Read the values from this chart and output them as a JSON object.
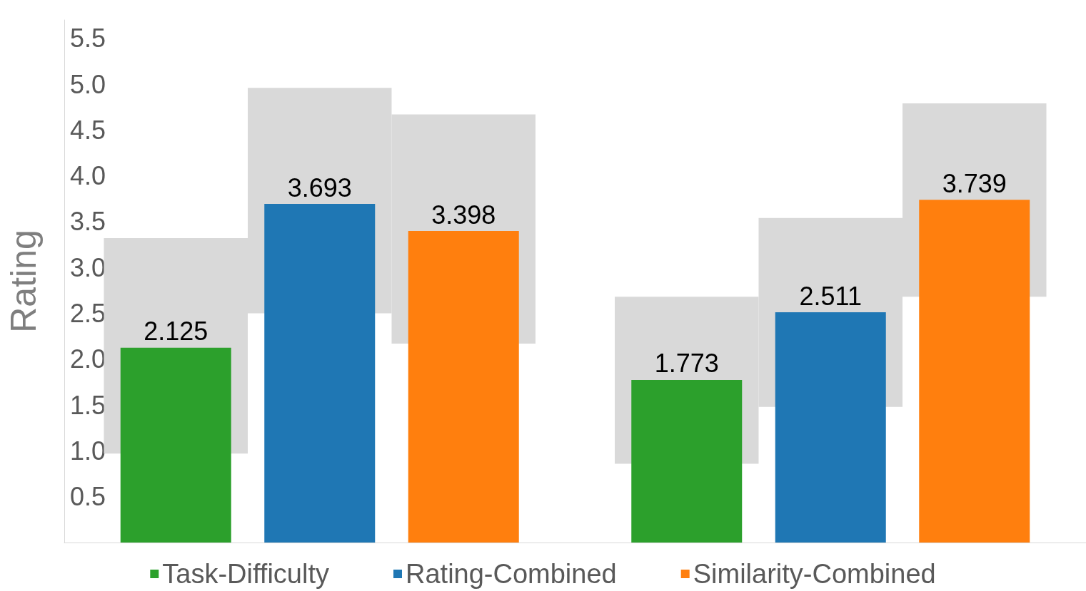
{
  "chart_data": {
    "type": "bar",
    "ylabel": "Rating",
    "categories": [
      null,
      null
    ],
    "ylim": [
      0,
      5.7
    ],
    "yticks": [
      0.5,
      {
        "value": 1,
        "label": "1.0"
      },
      1.5,
      {
        "value": 2,
        "label": "2.0"
      },
      2.5,
      {
        "value": 3,
        "label": "3.0"
      },
      3.5,
      {
        "value": 4,
        "label": "4.0"
      },
      4.5,
      {
        "value": 5,
        "label": "5.0"
      },
      5.5
    ],
    "legend": "bottom",
    "grid": false,
    "series": [
      {
        "name": "Task-Difficulty",
        "color": "#2ca02c",
        "values": [
          2.125,
          1.773
        ],
        "value_labels": [
          "2.125",
          "1.773"
        ]
      },
      {
        "name": "Rating-Combined",
        "color": "#1f77b4",
        "values": [
          3.693,
          2.511
        ],
        "value_labels": [
          "3.693",
          "2.511"
        ]
      },
      {
        "name": "Similarity-Combined",
        "color": "#ff7f0e",
        "values": [
          3.398,
          3.739
        ],
        "value_labels": [
          "3.398",
          "3.739"
        ]
      },
      {
        "color": "#d9d9d9",
        "values": [
          2.35,
          1.82
        ],
        "base": [
          0.97,
          0.86
        ]
      },
      {
        "color": "#d9d9d9",
        "values": [
          2.46,
          2.06
        ],
        "base": [
          2.5,
          1.48
        ]
      },
      {
        "color": "#d9d9d9",
        "values": [
          2.5,
          2.11
        ],
        "base": [
          2.17,
          2.68
        ]
      }
    ]
  }
}
